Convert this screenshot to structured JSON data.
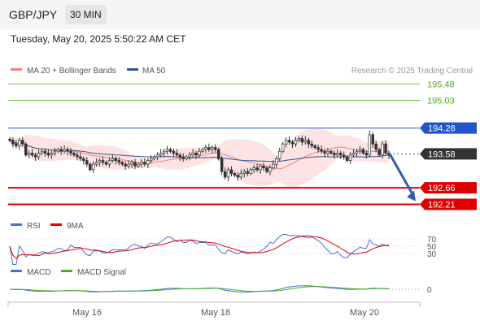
{
  "header": {
    "symbol": "GBP/JPY",
    "interval": "30 MIN",
    "timestamp": "Tuesday, May 20, 2025 5:50:22 AM CET"
  },
  "credit": "Research © 2025 Trading Central",
  "colors": {
    "ma20": "#f08080",
    "bollinger_fill": "#fde0e0",
    "ma50": "#2f5597",
    "target_green": "#4caf1a",
    "support_red": "#e00000",
    "resistance_blue": "#2255cc",
    "candle": "#333333",
    "current_tag": "#333333",
    "rsi": "#4a6fd4",
    "rsi_ma": "#e00000",
    "macd": "#4a6fd4",
    "macd_signal": "#4caf1a",
    "arrow": "#2f5fa8"
  },
  "chart_data": [
    {
      "type": "candlestick",
      "title": "",
      "legend": [
        {
          "name": "MA 20 + Bollinger Bands",
          "color": "#f08080"
        },
        {
          "name": "MA 50",
          "color": "#2f5597"
        }
      ],
      "x_ticks": [
        "May 16",
        "May 18",
        "May 20"
      ],
      "ylim": [
        191.8,
        196.0
      ],
      "levels": [
        {
          "value": 195.48,
          "label": "195.48",
          "kind": "target"
        },
        {
          "value": 195.03,
          "label": "195.03",
          "kind": "target"
        },
        {
          "value": 194.28,
          "label": "194.28",
          "kind": "resistance"
        },
        {
          "value": 193.58,
          "label": "193.58",
          "kind": "current"
        },
        {
          "value": 192.66,
          "label": "192.66",
          "kind": "support"
        },
        {
          "value": 192.21,
          "label": "192.21",
          "kind": "support"
        }
      ],
      "forecast": {
        "from": 193.58,
        "to": 192.21,
        "direction": "down"
      },
      "close": [
        193.95,
        193.85,
        193.8,
        193.95,
        193.85,
        193.55,
        193.6,
        193.55,
        193.5,
        193.6,
        193.65,
        193.6,
        193.55,
        193.6,
        193.65,
        193.7,
        193.65,
        193.7,
        193.65,
        193.6,
        193.55,
        193.5,
        193.45,
        193.4,
        193.3,
        193.15,
        193.3,
        193.35,
        193.4,
        193.35,
        193.3,
        193.4,
        193.45,
        193.4,
        193.35,
        193.3,
        193.25,
        193.3,
        193.35,
        193.25,
        193.3,
        193.35,
        193.3,
        193.4,
        193.45,
        193.5,
        193.55,
        193.6,
        193.65,
        193.7,
        193.65,
        193.6,
        193.55,
        193.5,
        193.45,
        193.5,
        193.55,
        193.6,
        193.55,
        193.65,
        193.7,
        193.75,
        193.7,
        193.75,
        193.7,
        193.45,
        193.1,
        192.95,
        193.15,
        193.05,
        193.0,
        192.95,
        193.05,
        193.1,
        193.05,
        193.15,
        193.2,
        193.15,
        193.25,
        193.2,
        193.1,
        193.2,
        193.3,
        193.45,
        193.65,
        193.85,
        193.95,
        193.9,
        193.85,
        193.95,
        194.0,
        193.9,
        193.95,
        193.85,
        193.8,
        193.75,
        193.7,
        193.65,
        193.6,
        193.65,
        193.6,
        193.55,
        193.6,
        193.55,
        193.5,
        193.4,
        193.55,
        193.6,
        193.65,
        193.7,
        193.6,
        193.55,
        194.1,
        193.85,
        193.7,
        193.55,
        193.85,
        193.6,
        193.55
      ]
    },
    {
      "type": "line",
      "title": "RSI",
      "legend": [
        {
          "name": "RSI",
          "color": "#4a6fd4"
        },
        {
          "name": "9MA",
          "color": "#e00000"
        }
      ],
      "y_ticks": [
        70,
        50,
        30
      ],
      "ylim": [
        20,
        80
      ]
    },
    {
      "type": "line",
      "title": "MACD",
      "legend": [
        {
          "name": "MACD",
          "color": "#4a6fd4"
        },
        {
          "name": "MACD Signal",
          "color": "#4caf1a"
        }
      ],
      "y_ticks": [
        0
      ]
    }
  ]
}
